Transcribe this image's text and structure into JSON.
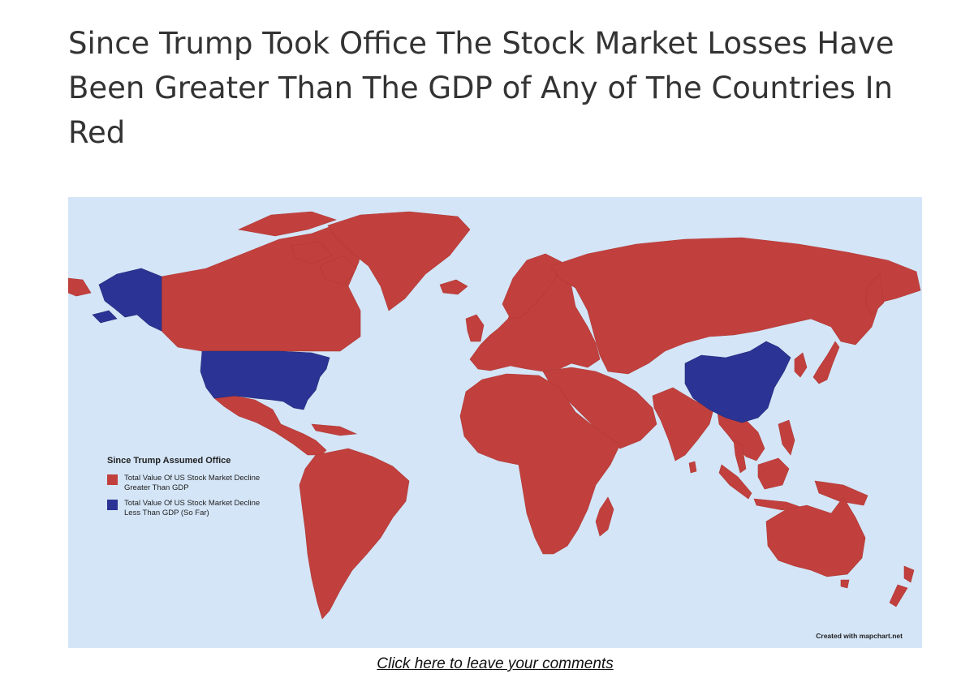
{
  "page": {
    "headline": "Since Trump Took Office The Stock Market Losses Have Been Greater Than The GDP of Any of The Countries In Red",
    "comment_link": "Click here to leave your comments"
  },
  "map": {
    "colors": {
      "ocean": "#d4e5f7",
      "greater_than_gdp": "#c1403d",
      "less_than_gdp": "#2b3494"
    },
    "blue_countries": [
      "United States",
      "China"
    ],
    "legend": {
      "title": "Since Trump Assumed Office",
      "items": [
        {
          "label": "Total Value Of US Stock Market Decline Greater Than GDP",
          "color": "#c1403d"
        },
        {
          "label": "Total Value Of US Stock Market Decline Less Than GDP (So Far)",
          "color": "#2b3494"
        }
      ]
    },
    "credit": "Created with mapchart.net"
  }
}
